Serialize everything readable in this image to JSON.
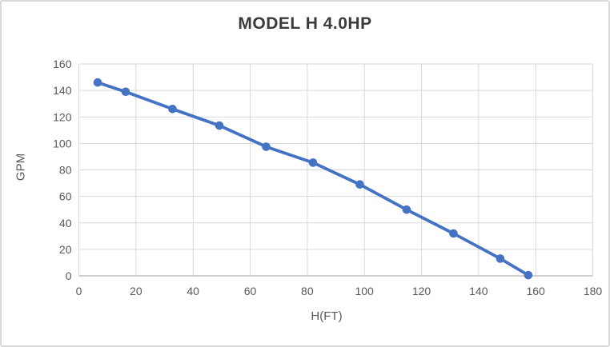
{
  "chart": {
    "title": "MODEL H 4.0HP",
    "x_axis_title": "H(FT)",
    "y_axis_title": "GPM"
  },
  "chart_data": {
    "type": "line",
    "title": "MODEL H 4.0HP",
    "xlabel": "H(FT)",
    "ylabel": "GPM",
    "xlim": [
      0,
      180
    ],
    "ylim": [
      0,
      160
    ],
    "x_ticks": [
      0,
      20,
      40,
      60,
      80,
      100,
      120,
      140,
      160,
      180
    ],
    "y_ticks": [
      0,
      20,
      40,
      60,
      80,
      100,
      120,
      140,
      160
    ],
    "grid": true,
    "legend": false,
    "series": [
      {
        "name": "MODEL H 4.0HP",
        "marker": "circle",
        "x": [
          6.6,
          16.4,
          32.8,
          49.2,
          65.6,
          82.0,
          98.4,
          114.8,
          131.2,
          147.6,
          157.4
        ],
        "y": [
          146,
          139,
          126,
          113.5,
          97.5,
          85.5,
          69,
          50,
          32,
          13,
          0.5
        ]
      }
    ],
    "colors": {
      "series_line": "#4472c4",
      "marker_fill": "#4472c4",
      "gridline": "#d9d9d9",
      "axis_line": "#bfbfbf",
      "tick_text": "#595959",
      "title_text": "#3b3b3b",
      "frame_border": "#d9d9d9"
    }
  }
}
